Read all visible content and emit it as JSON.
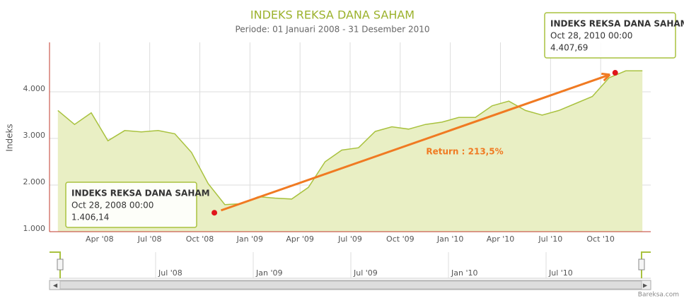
{
  "chart_data": {
    "type": "area",
    "title": "INDEKS REKSA DANA SAHAM",
    "subtitle": "Periode: 01 Januari 2008 - 31 Desember 2010",
    "y_label": "Indeks",
    "color": "#a9c23f",
    "fill": "#e9efc4",
    "grid": true,
    "x": [
      "2008-01",
      "2008-02",
      "2008-03",
      "2008-04",
      "2008-05",
      "2008-06",
      "2008-07",
      "2008-08",
      "2008-09",
      "2008-10",
      "2008-11",
      "2008-12",
      "2009-01",
      "2009-02",
      "2009-03",
      "2009-04",
      "2009-05",
      "2009-06",
      "2009-07",
      "2009-08",
      "2009-09",
      "2009-10",
      "2009-11",
      "2009-12",
      "2010-01",
      "2010-02",
      "2010-03",
      "2010-04",
      "2010-05",
      "2010-06",
      "2010-07",
      "2010-08",
      "2010-09",
      "2010-10",
      "2010-11",
      "2010-12"
    ],
    "values": [
      3600,
      3300,
      3550,
      2950,
      3170,
      3140,
      3170,
      3100,
      2700,
      2030,
      1580,
      1600,
      1750,
      1720,
      1700,
      1950,
      2500,
      2750,
      2800,
      3150,
      3250,
      3200,
      3300,
      3350,
      3450,
      3450,
      3700,
      3800,
      3600,
      3500,
      3600,
      3750,
      3900,
      4300,
      4450,
      4450
    ],
    "ylim": [
      1000,
      5060
    ],
    "yticks": [
      {
        "value": 1000,
        "label": "1.000"
      },
      {
        "value": 2000,
        "label": "2.000"
      },
      {
        "value": 3000,
        "label": "3.000"
      },
      {
        "value": 4000,
        "label": "4.000"
      }
    ],
    "xticks": [
      {
        "value": "2008-04",
        "label": "Apr '08"
      },
      {
        "value": "2008-07",
        "label": "Jul '08"
      },
      {
        "value": "2008-10",
        "label": "Oct '08"
      },
      {
        "value": "2009-01",
        "label": "Jan '09"
      },
      {
        "value": "2009-04",
        "label": "Apr '09"
      },
      {
        "value": "2009-07",
        "label": "Jul '09"
      },
      {
        "value": "2009-10",
        "label": "Oct '09"
      },
      {
        "value": "2010-01",
        "label": "Jan '10"
      },
      {
        "value": "2010-04",
        "label": "Apr '10"
      },
      {
        "value": "2010-07",
        "label": "Jul '10"
      },
      {
        "value": "2010-10",
        "label": "Oct '10"
      }
    ],
    "annotations": [
      {
        "title": "INDEKS REKSA DANA SAHAM",
        "date": "Oct 28, 2008 00:00",
        "value": 1406.14,
        "label": "1.406,14"
      },
      {
        "title": "INDEKS REKSA DANA SAHAM",
        "date": "Oct 28, 2010 00:00",
        "value": 4407.69,
        "label": "4.407,69"
      }
    ],
    "return_label": "Return : 213,5%",
    "navigator": {
      "xticks": [
        {
          "value": "2008-07",
          "label": "Jul '08"
        },
        {
          "value": "2009-01",
          "label": "Jan '09"
        },
        {
          "value": "2009-07",
          "label": "Jul '09"
        },
        {
          "value": "2010-01",
          "label": "Jan '10"
        },
        {
          "value": "2010-07",
          "label": "Jul '10"
        }
      ]
    },
    "credits": "Bareksa.com"
  }
}
